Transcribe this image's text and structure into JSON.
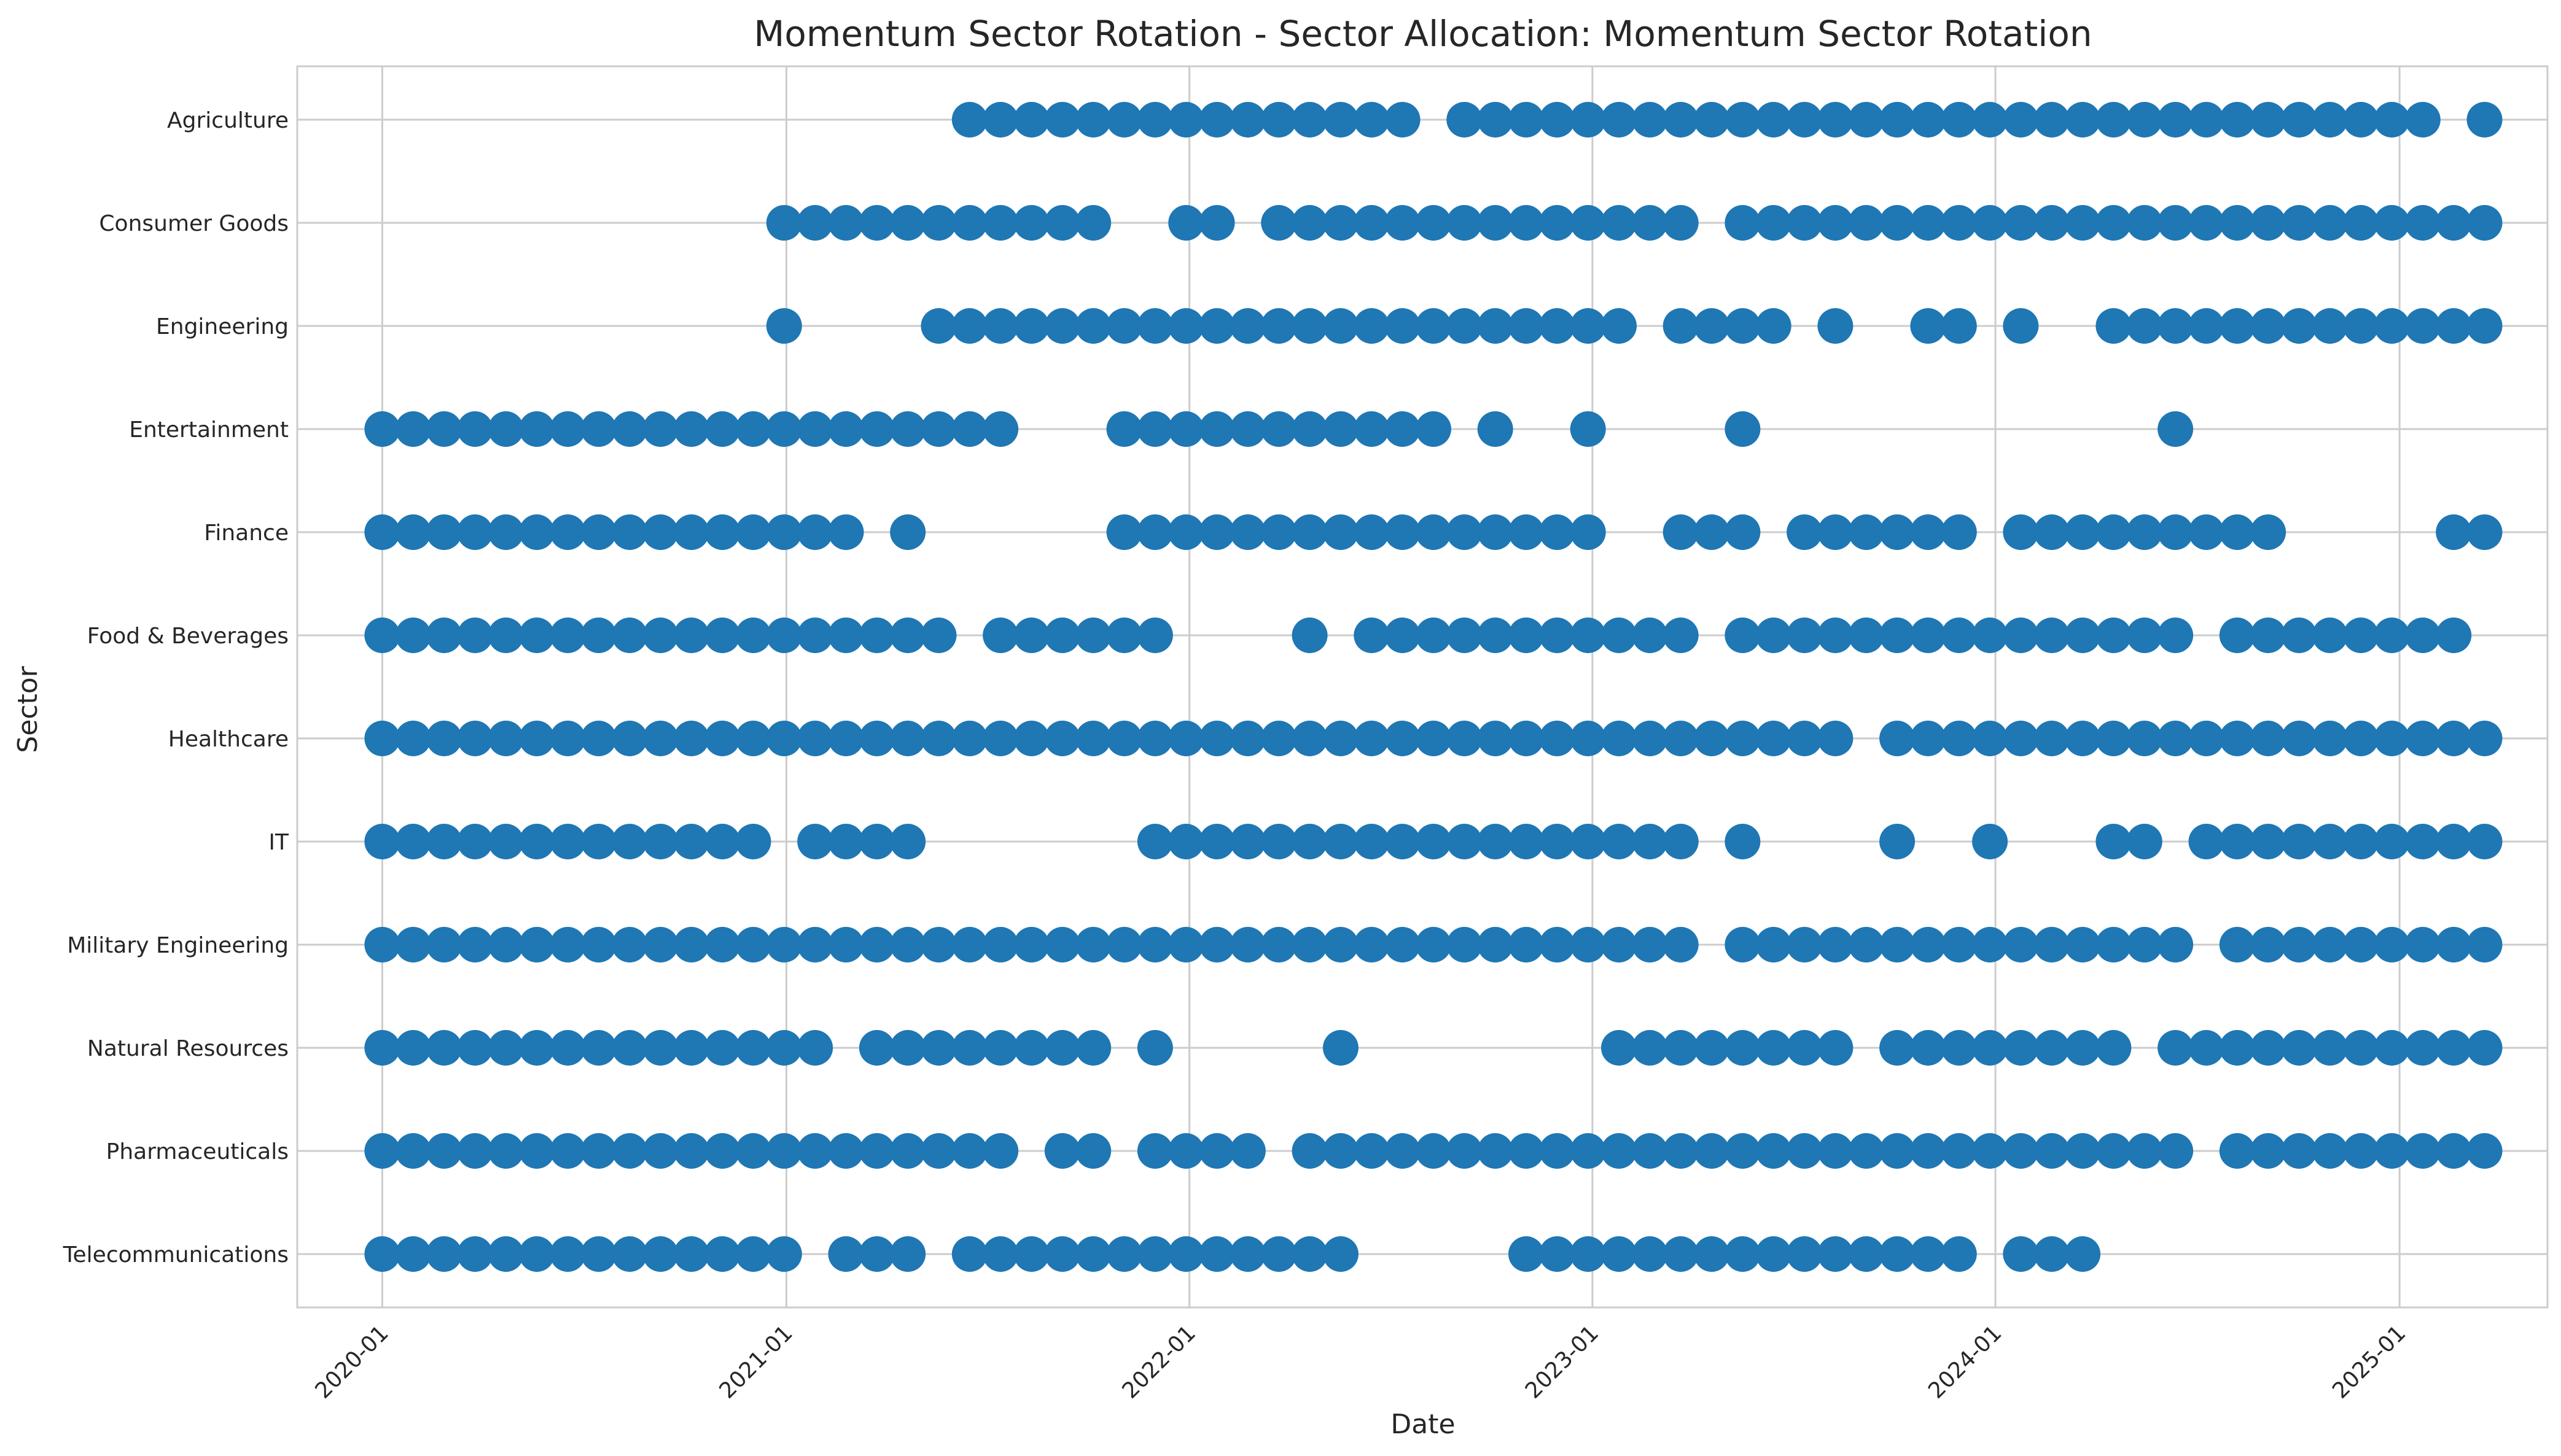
{
  "chart_data": {
    "type": "scatter",
    "title": "Momentum Sector Rotation - Sector Allocation: Momentum Sector Rotation",
    "xlabel": "Date",
    "ylabel": "Sector",
    "xlim": [
      "2019-10-16",
      "2025-05-15"
    ],
    "x_ticks": [
      "2020-01",
      "2021-01",
      "2022-01",
      "2023-01",
      "2024-01",
      "2025-01"
    ],
    "y_categories": [
      "Agriculture",
      "Consumer Goods",
      "Engineering",
      "Entertainment",
      "Finance",
      "Food & Beverages",
      "Healthcare",
      "IT",
      "Military Engineering",
      "Natural Resources",
      "Pharmaceuticals",
      "Telecommunications"
    ],
    "grid": true,
    "marker_color": "#1f77b4",
    "dates": [
      "2020-01-01",
      "2020-01-29",
      "2020-02-26",
      "2020-03-25",
      "2020-04-22",
      "2020-05-20",
      "2020-06-17",
      "2020-07-15",
      "2020-08-12",
      "2020-09-09",
      "2020-10-07",
      "2020-11-04",
      "2020-12-02",
      "2020-12-30",
      "2021-01-27",
      "2021-02-24",
      "2021-03-24",
      "2021-04-21",
      "2021-05-19",
      "2021-06-16",
      "2021-07-14",
      "2021-08-11",
      "2021-09-08",
      "2021-10-06",
      "2021-11-03",
      "2021-12-01",
      "2021-12-29",
      "2022-01-26",
      "2022-02-23",
      "2022-03-23",
      "2022-04-20",
      "2022-05-18",
      "2022-06-15",
      "2022-07-13",
      "2022-08-10",
      "2022-09-07",
      "2022-10-05",
      "2022-11-02",
      "2022-11-30",
      "2022-12-28",
      "2023-01-25",
      "2023-02-22",
      "2023-03-22",
      "2023-04-19",
      "2023-05-17",
      "2023-06-14",
      "2023-07-12",
      "2023-08-09",
      "2023-09-06",
      "2023-10-04",
      "2023-11-01",
      "2023-11-29",
      "2023-12-27",
      "2024-01-24",
      "2024-02-21",
      "2024-03-20",
      "2024-04-17",
      "2024-05-15",
      "2024-06-12",
      "2024-07-10",
      "2024-08-07",
      "2024-09-04",
      "2024-10-02",
      "2024-10-30",
      "2024-11-27",
      "2024-12-25",
      "2025-01-22",
      "2025-02-19",
      "2025-03-19"
    ],
    "allocations": {
      "Agriculture": [
        19,
        20,
        21,
        22,
        23,
        24,
        25,
        26,
        27,
        28,
        29,
        30,
        31,
        32,
        33,
        35,
        36,
        37,
        38,
        39,
        40,
        41,
        42,
        43,
        44,
        45,
        46,
        47,
        48,
        49,
        50,
        51,
        52,
        53,
        54,
        55,
        56,
        57,
        58,
        59,
        60,
        61,
        62,
        63,
        64,
        65,
        66,
        68
      ],
      "Consumer Goods": [
        13,
        14,
        15,
        16,
        17,
        18,
        19,
        20,
        21,
        22,
        23,
        26,
        27,
        29,
        30,
        31,
        32,
        33,
        34,
        35,
        36,
        37,
        38,
        39,
        40,
        41,
        42,
        44,
        45,
        46,
        47,
        48,
        49,
        50,
        51,
        52,
        53,
        54,
        55,
        56,
        57,
        58,
        59,
        60,
        61,
        62,
        63,
        64,
        65,
        66,
        67,
        68
      ],
      "Engineering": [
        13,
        18,
        19,
        20,
        21,
        22,
        23,
        24,
        25,
        26,
        27,
        28,
        29,
        30,
        31,
        32,
        33,
        34,
        35,
        36,
        37,
        38,
        39,
        40,
        42,
        43,
        44,
        45,
        47,
        50,
        51,
        53,
        56,
        57,
        58,
        59,
        60,
        61,
        62,
        63,
        64,
        65,
        66,
        67,
        68
      ],
      "Entertainment": [
        0,
        1,
        2,
        3,
        4,
        5,
        6,
        7,
        8,
        9,
        10,
        11,
        12,
        13,
        14,
        15,
        16,
        17,
        18,
        19,
        20,
        24,
        25,
        26,
        27,
        28,
        29,
        30,
        31,
        32,
        33,
        34,
        36,
        39,
        44,
        58
      ],
      "Finance": [
        0,
        1,
        2,
        3,
        4,
        5,
        6,
        7,
        8,
        9,
        10,
        11,
        12,
        13,
        14,
        15,
        17,
        24,
        25,
        26,
        27,
        28,
        29,
        30,
        31,
        32,
        33,
        34,
        35,
        36,
        37,
        38,
        39,
        42,
        43,
        44,
        46,
        47,
        48,
        49,
        50,
        51,
        53,
        54,
        55,
        56,
        57,
        58,
        59,
        60,
        61,
        67,
        68
      ],
      "Food & Beverages": [
        0,
        1,
        2,
        3,
        4,
        5,
        6,
        7,
        8,
        9,
        10,
        11,
        12,
        13,
        14,
        15,
        16,
        17,
        18,
        20,
        21,
        22,
        23,
        24,
        25,
        30,
        32,
        33,
        34,
        35,
        36,
        37,
        38,
        39,
        40,
        41,
        42,
        44,
        45,
        46,
        47,
        48,
        49,
        50,
        51,
        52,
        53,
        54,
        55,
        56,
        57,
        58,
        60,
        61,
        62,
        63,
        64,
        65,
        66,
        67
      ],
      "Healthcare": [
        0,
        1,
        2,
        3,
        4,
        5,
        6,
        7,
        8,
        9,
        10,
        11,
        12,
        13,
        14,
        15,
        16,
        17,
        18,
        19,
        20,
        21,
        22,
        23,
        24,
        25,
        26,
        27,
        28,
        29,
        30,
        31,
        32,
        33,
        34,
        35,
        36,
        37,
        38,
        39,
        40,
        41,
        42,
        43,
        44,
        45,
        46,
        47,
        49,
        50,
        51,
        52,
        53,
        54,
        55,
        56,
        57,
        58,
        59,
        60,
        61,
        62,
        63,
        64,
        65,
        66,
        67,
        68
      ],
      "IT": [
        0,
        1,
        2,
        3,
        4,
        5,
        6,
        7,
        8,
        9,
        10,
        11,
        12,
        14,
        15,
        16,
        17,
        25,
        26,
        27,
        28,
        29,
        30,
        31,
        32,
        33,
        34,
        35,
        36,
        37,
        38,
        39,
        40,
        41,
        42,
        44,
        49,
        52,
        56,
        57,
        59,
        60,
        61,
        62,
        63,
        64,
        65,
        66,
        67,
        68
      ],
      "Military Engineering": [
        0,
        1,
        2,
        3,
        4,
        5,
        6,
        7,
        8,
        9,
        10,
        11,
        12,
        13,
        14,
        15,
        16,
        17,
        18,
        19,
        20,
        21,
        22,
        23,
        24,
        25,
        26,
        27,
        28,
        29,
        30,
        31,
        32,
        33,
        34,
        35,
        36,
        37,
        38,
        39,
        40,
        41,
        42,
        44,
        45,
        46,
        47,
        48,
        49,
        50,
        51,
        52,
        53,
        54,
        55,
        56,
        57,
        58,
        60,
        61,
        62,
        63,
        64,
        65,
        66,
        67,
        68
      ],
      "Natural Resources": [
        0,
        1,
        2,
        3,
        4,
        5,
        6,
        7,
        8,
        9,
        10,
        11,
        12,
        13,
        14,
        16,
        17,
        18,
        19,
        20,
        21,
        22,
        23,
        25,
        31,
        40,
        41,
        42,
        43,
        44,
        45,
        46,
        47,
        49,
        50,
        51,
        52,
        53,
        54,
        55,
        56,
        58,
        59,
        60,
        61,
        62,
        63,
        64,
        65,
        66,
        67,
        68
      ],
      "Pharmaceuticals": [
        0,
        1,
        2,
        3,
        4,
        5,
        6,
        7,
        8,
        9,
        10,
        11,
        12,
        13,
        14,
        15,
        16,
        17,
        18,
        19,
        20,
        22,
        23,
        25,
        26,
        27,
        28,
        30,
        31,
        32,
        33,
        34,
        35,
        36,
        37,
        38,
        39,
        40,
        41,
        42,
        43,
        44,
        45,
        46,
        47,
        48,
        49,
        50,
        51,
        52,
        53,
        54,
        55,
        56,
        57,
        58,
        60,
        61,
        62,
        63,
        64,
        65,
        66,
        67,
        68
      ],
      "Telecommunications": [
        0,
        1,
        2,
        3,
        4,
        5,
        6,
        7,
        8,
        9,
        10,
        11,
        12,
        13,
        15,
        16,
        17,
        19,
        20,
        21,
        22,
        23,
        24,
        25,
        26,
        27,
        28,
        29,
        30,
        31,
        37,
        38,
        39,
        40,
        41,
        42,
        43,
        44,
        45,
        46,
        47,
        48,
        49,
        50,
        51,
        53,
        54,
        55
      ]
    }
  }
}
